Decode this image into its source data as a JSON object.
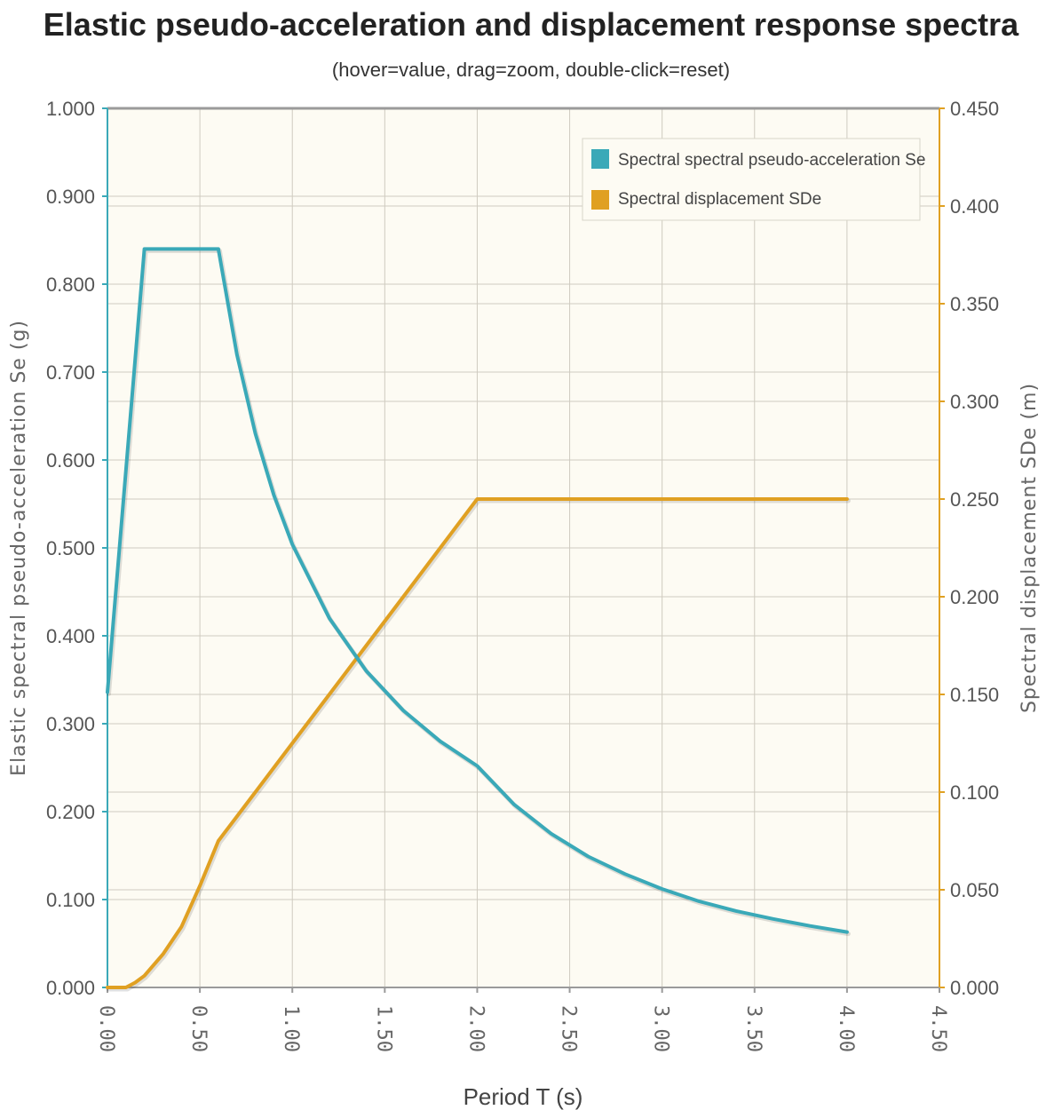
{
  "chart_data": {
    "type": "line",
    "title": "Elastic pseudo-acceleration and displacement response spectra",
    "subtitle": "(hover=value, drag=zoom, double-click=reset)",
    "xlabel": "Period T (s)",
    "ylabel": "Elastic spectral pseudo-acceleration Se (g)",
    "y2label": "Spectral displacement SDe (m)",
    "xlim": [
      0,
      4.5
    ],
    "ylim": [
      0,
      1.0
    ],
    "y2lim": [
      0,
      0.45
    ],
    "x_ticks": [
      "0.00",
      "0.50",
      "1.00",
      "1.50",
      "2.00",
      "2.50",
      "3.00",
      "3.50",
      "4.00",
      "4.50"
    ],
    "y_ticks": [
      "0.000",
      "0.100",
      "0.200",
      "0.300",
      "0.400",
      "0.500",
      "0.600",
      "0.700",
      "0.800",
      "0.900",
      "1.000"
    ],
    "y2_ticks": [
      "0.000",
      "0.050",
      "0.100",
      "0.150",
      "0.200",
      "0.250",
      "0.300",
      "0.350",
      "0.400",
      "0.450"
    ],
    "grid": true,
    "legend_position": "top-right",
    "colors": {
      "se": "#3aa9b8",
      "sde": "#e0a022",
      "plot_bg": "#fdfbf3",
      "grid": "#cfcbc0"
    },
    "series": [
      {
        "name": "Spectral spectral pseudo-acceleration Se",
        "axis": "left",
        "x": [
          0.0,
          0.2,
          0.6,
          0.7,
          0.8,
          0.9,
          1.0,
          1.2,
          1.4,
          1.6,
          1.8,
          2.0,
          2.2,
          2.4,
          2.6,
          2.8,
          3.0,
          3.2,
          3.4,
          3.6,
          3.8,
          4.0
        ],
        "values": [
          0.336,
          0.84,
          0.84,
          0.72,
          0.63,
          0.56,
          0.504,
          0.42,
          0.36,
          0.315,
          0.28,
          0.252,
          0.208,
          0.175,
          0.149,
          0.129,
          0.112,
          0.098,
          0.087,
          0.078,
          0.07,
          0.063
        ]
      },
      {
        "name": "Spectral displacement SDe",
        "axis": "right",
        "x": [
          0.0,
          0.1,
          0.15,
          0.2,
          0.3,
          0.4,
          0.5,
          0.6,
          0.8,
          1.0,
          1.2,
          1.4,
          1.6,
          1.8,
          2.0,
          3.0,
          4.0
        ],
        "values": [
          0.0,
          0.0,
          0.0025,
          0.006,
          0.017,
          0.031,
          0.052,
          0.075,
          0.1,
          0.125,
          0.15,
          0.175,
          0.2,
          0.225,
          0.25,
          0.25,
          0.25
        ]
      }
    ]
  }
}
